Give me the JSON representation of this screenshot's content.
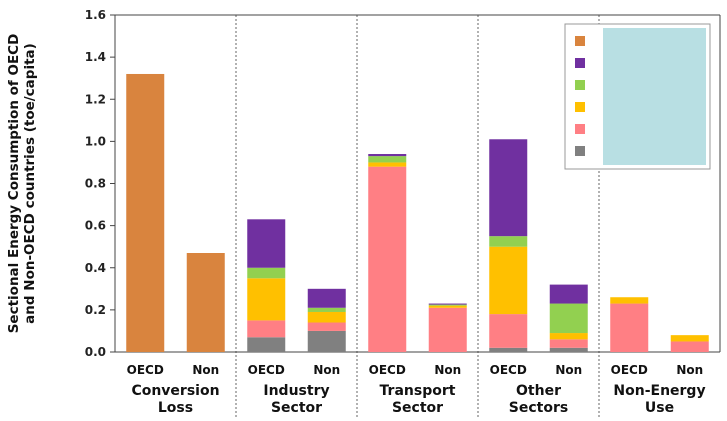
{
  "chart_data": {
    "type": "bar",
    "stacked": true,
    "ylabel_lines": [
      "Sectional Energy Consumption of OECD",
      "and Non-OECD countries (toe/capita)"
    ],
    "ylim": [
      0,
      1.6
    ],
    "yticks": [
      "0.0",
      "0.2",
      "0.4",
      "0.6",
      "0.8",
      "1.0",
      "1.2",
      "1.4",
      "1.6"
    ],
    "groups": [
      {
        "label_lines": [
          "Conversion",
          "Loss"
        ],
        "bars": [
          "OECD",
          "Non"
        ]
      },
      {
        "label_lines": [
          "Industry",
          "Sector"
        ],
        "bars": [
          "OECD",
          "Non"
        ]
      },
      {
        "label_lines": [
          "Transport",
          "Sector"
        ],
        "bars": [
          "OECD",
          "Non"
        ]
      },
      {
        "label_lines": [
          "Other",
          "Sectors"
        ],
        "bars": [
          "OECD",
          "Non"
        ]
      },
      {
        "label_lines": [
          "Non-Energy",
          "Use"
        ],
        "bars": [
          "OECD",
          "Non"
        ]
      }
    ],
    "categories": [
      "OECD",
      "Non",
      "OECD",
      "Non",
      "OECD",
      "Non",
      "OECD",
      "Non",
      "OECD",
      "Non"
    ],
    "series": [
      {
        "color": "#808080",
        "values": [
          0,
          0,
          0.07,
          0.1,
          0,
          0,
          0.02,
          0.02,
          0,
          0
        ]
      },
      {
        "color": "#ff7f84",
        "values": [
          0,
          0,
          0.08,
          0.04,
          0.88,
          0.21,
          0.16,
          0.04,
          0.23,
          0.05
        ]
      },
      {
        "color": "#ffc000",
        "values": [
          0,
          0,
          0.2,
          0.05,
          0.02,
          0.01,
          0.32,
          0.03,
          0.03,
          0.03
        ]
      },
      {
        "color": "#92d050",
        "values": [
          0,
          0,
          0.05,
          0.02,
          0.03,
          0.005,
          0.05,
          0.14,
          0,
          0
        ]
      },
      {
        "color": "#7030a0",
        "values": [
          0,
          0,
          0.23,
          0.09,
          0.01,
          0.005,
          0.46,
          0.09,
          0,
          0
        ]
      },
      {
        "color": "#d9843e",
        "values": [
          1.32,
          0.47,
          0,
          0,
          0,
          0,
          0,
          0,
          0,
          0
        ]
      }
    ],
    "grid": false,
    "legend": {
      "placement": "top-right",
      "obscured": true,
      "cover_color": "#b8dfe3"
    }
  }
}
